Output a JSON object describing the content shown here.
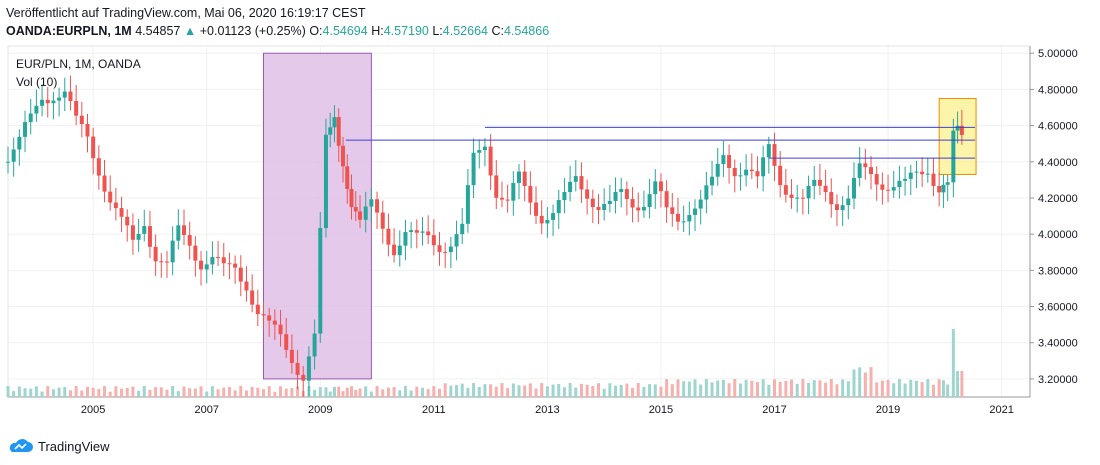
{
  "header": {
    "published": "Veröffentlicht auf TradingView.com, Mai 06, 2020 16:19:17 CEST",
    "symbol": "OANDA:EURPLN, 1M",
    "last": "4.54857",
    "change_arrow": "▲",
    "change": "+0.01123 (+0.25%)",
    "o_label": "O:",
    "o_value": "4.54694",
    "h_label": "H:",
    "h_value": "4.57190",
    "l_label": "L:",
    "l_value": "4.52664",
    "c_label": "C:",
    "c_value": "4.54866"
  },
  "legend": {
    "title": "EUR/PLN, 1M, OANDA",
    "volume": "Vol (10)"
  },
  "footer": {
    "brand": "TradingView",
    "logo_icon": "tradingview-cloud-icon"
  },
  "colors": {
    "up": "#26a69a",
    "down": "#ef5350",
    "up_vol": "#9fd5cf",
    "down_vol": "#f6b0ad",
    "hline": "#3f3fd6",
    "purple_box": "#e1bfe8",
    "yellow_box": "#fbf29a"
  },
  "chart_data": {
    "type": "candlestick",
    "interval": "1M",
    "x_ticks": [
      "2005",
      "2007",
      "2009",
      "2011",
      "2013",
      "2015",
      "2017",
      "2019",
      "2021"
    ],
    "y_ticks": [
      "5.00000",
      "4.80000",
      "4.60000",
      "4.40000",
      "4.20000",
      "4.00000",
      "3.80000",
      "3.60000",
      "3.40000",
      "3.20000"
    ],
    "ylim": [
      3.1,
      5.04
    ],
    "xlim": [
      2003.5,
      2021.5
    ],
    "grid": true,
    "close_series": [
      [
        2003.5,
        4.45
      ],
      [
        2003.7,
        4.55
      ],
      [
        2003.9,
        4.62
      ],
      [
        2004.1,
        4.72
      ],
      [
        2004.3,
        4.78
      ],
      [
        2004.5,
        4.82
      ],
      [
        2004.7,
        4.62
      ],
      [
        2004.9,
        4.5
      ],
      [
        2005.1,
        4.35
      ],
      [
        2005.3,
        4.22
      ],
      [
        2005.5,
        4.08
      ],
      [
        2005.7,
        3.92
      ],
      [
        2005.9,
        4.05
      ],
      [
        2006.1,
        3.9
      ],
      [
        2006.3,
        3.85
      ],
      [
        2006.5,
        4.0
      ],
      [
        2006.7,
        3.92
      ],
      [
        2006.9,
        3.85
      ],
      [
        2007.1,
        3.9
      ],
      [
        2007.3,
        3.8
      ],
      [
        2007.5,
        3.78
      ],
      [
        2007.7,
        3.72
      ],
      [
        2007.9,
        3.6
      ],
      [
        2008.1,
        3.5
      ],
      [
        2008.3,
        3.4
      ],
      [
        2008.5,
        3.3
      ],
      [
        2008.7,
        3.24
      ],
      [
        2008.9,
        3.45
      ],
      [
        2009.0,
        4.0
      ],
      [
        2009.1,
        4.5
      ],
      [
        2009.25,
        4.62
      ],
      [
        2009.4,
        4.4
      ],
      [
        2009.55,
        4.2
      ],
      [
        2009.7,
        4.1
      ],
      [
        2009.9,
        4.15
      ],
      [
        2010.1,
        4.0
      ],
      [
        2010.3,
        3.92
      ],
      [
        2010.5,
        4.05
      ],
      [
        2010.7,
        3.98
      ],
      [
        2010.9,
        3.95
      ],
      [
        2011.1,
        3.92
      ],
      [
        2011.3,
        3.98
      ],
      [
        2011.5,
        4.05
      ],
      [
        2011.7,
        4.4
      ],
      [
        2011.9,
        4.48
      ],
      [
        2012.1,
        4.25
      ],
      [
        2012.3,
        4.2
      ],
      [
        2012.5,
        4.3
      ],
      [
        2012.7,
        4.15
      ],
      [
        2012.9,
        4.1
      ],
      [
        2013.1,
        4.15
      ],
      [
        2013.3,
        4.2
      ],
      [
        2013.5,
        4.28
      ],
      [
        2013.7,
        4.22
      ],
      [
        2013.9,
        4.18
      ],
      [
        2014.1,
        4.17
      ],
      [
        2014.3,
        4.2
      ],
      [
        2014.5,
        4.15
      ],
      [
        2014.7,
        4.2
      ],
      [
        2014.9,
        4.3
      ],
      [
        2015.1,
        4.1
      ],
      [
        2015.3,
        4.05
      ],
      [
        2015.5,
        4.15
      ],
      [
        2015.7,
        4.22
      ],
      [
        2015.9,
        4.28
      ],
      [
        2016.1,
        4.4
      ],
      [
        2016.3,
        4.35
      ],
      [
        2016.5,
        4.4
      ],
      [
        2016.7,
        4.3
      ],
      [
        2016.9,
        4.45
      ],
      [
        2017.1,
        4.28
      ],
      [
        2017.3,
        4.25
      ],
      [
        2017.5,
        4.2
      ],
      [
        2017.7,
        4.25
      ],
      [
        2017.9,
        4.22
      ],
      [
        2018.1,
        4.18
      ],
      [
        2018.3,
        4.22
      ],
      [
        2018.5,
        4.35
      ],
      [
        2018.7,
        4.3
      ],
      [
        2018.9,
        4.28
      ],
      [
        2019.1,
        4.3
      ],
      [
        2019.3,
        4.28
      ],
      [
        2019.5,
        4.3
      ],
      [
        2019.7,
        4.35
      ],
      [
        2019.9,
        4.28
      ],
      [
        2020.05,
        4.3
      ],
      [
        2020.15,
        4.55
      ],
      [
        2020.3,
        4.54857
      ]
    ],
    "horizontal_lines": [
      4.59,
      4.52,
      4.42
    ],
    "highlight_zones": [
      {
        "from": 2008.0,
        "to": 2009.9,
        "low": 3.2,
        "high": 5.0
      },
      {
        "from": 2019.9,
        "to": 2020.55,
        "low": 4.33,
        "high": 4.75
      }
    ],
    "volume_spike": {
      "x": 2020.15,
      "value": "high"
    }
  }
}
